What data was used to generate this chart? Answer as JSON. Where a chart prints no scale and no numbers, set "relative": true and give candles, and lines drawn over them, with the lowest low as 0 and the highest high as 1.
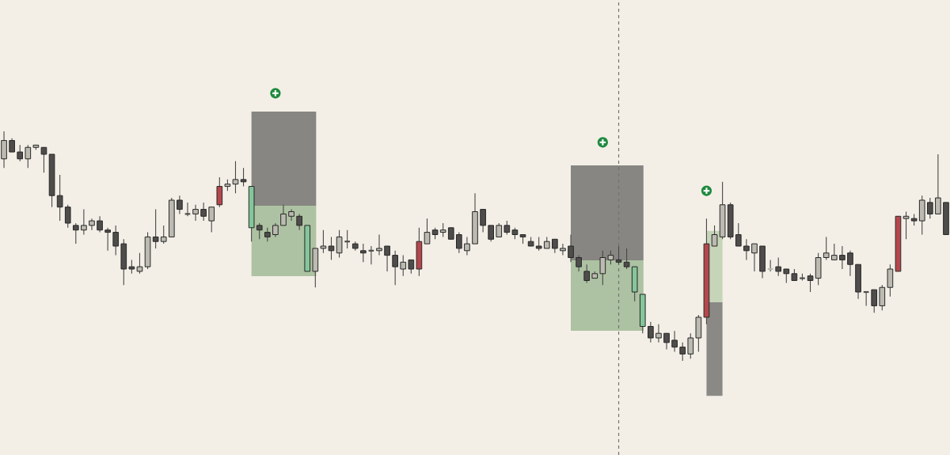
{
  "chart_data": {
    "type": "candlestick",
    "relative": true,
    "categories": [
      null,
      null,
      null,
      null,
      null,
      null,
      null,
      null,
      null,
      null,
      null,
      null,
      null,
      null,
      null,
      null,
      null,
      null,
      null,
      null,
      null,
      null,
      null,
      null,
      null,
      null,
      null,
      null,
      null,
      null,
      null,
      null,
      null,
      null,
      null,
      null,
      null,
      null,
      null,
      null,
      null,
      null,
      null,
      null,
      null,
      null,
      null,
      null,
      null,
      null,
      null,
      null,
      null,
      null,
      null,
      null,
      null,
      null,
      null,
      null,
      null,
      null,
      null,
      null,
      null,
      null,
      null,
      null,
      null,
      null,
      null,
      null,
      null,
      null,
      null,
      null,
      null,
      null,
      null,
      null,
      null,
      null,
      null,
      null,
      null,
      null,
      null,
      null,
      null,
      null,
      null,
      null,
      null,
      null,
      null,
      null,
      null,
      null,
      null,
      null,
      null,
      null,
      null,
      null,
      null,
      null,
      null,
      null,
      null,
      null,
      null,
      null,
      null,
      null,
      null,
      null,
      null,
      null,
      null
    ],
    "ohlc": [
      [
        0.88,
        1.0,
        0.84,
        0.96
      ],
      [
        0.96,
        0.97,
        0.91,
        0.91
      ],
      [
        0.91,
        0.94,
        0.87,
        0.88
      ],
      [
        0.88,
        0.94,
        0.84,
        0.93
      ],
      [
        0.93,
        0.94,
        0.92,
        0.94
      ],
      [
        0.93,
        0.93,
        0.82,
        0.9
      ],
      [
        0.9,
        0.9,
        0.67,
        0.72
      ],
      [
        0.72,
        0.81,
        0.61,
        0.67
      ],
      [
        0.67,
        0.68,
        0.58,
        0.6
      ],
      [
        0.59,
        0.6,
        0.51,
        0.57
      ],
      [
        0.57,
        0.66,
        0.55,
        0.59
      ],
      [
        0.59,
        0.62,
        0.57,
        0.61
      ],
      [
        0.61,
        0.63,
        0.56,
        0.57
      ],
      [
        0.57,
        0.58,
        0.48,
        0.56
      ],
      [
        0.56,
        0.59,
        0.46,
        0.5
      ],
      [
        0.51,
        0.53,
        0.33,
        0.4
      ],
      [
        0.41,
        0.44,
        0.38,
        0.4
      ],
      [
        0.39,
        0.47,
        0.38,
        0.41
      ],
      [
        0.41,
        0.56,
        0.4,
        0.54
      ],
      [
        0.54,
        0.66,
        0.49,
        0.52
      ],
      [
        0.52,
        0.59,
        0.51,
        0.54
      ],
      [
        0.54,
        0.71,
        0.54,
        0.7
      ],
      [
        0.7,
        0.72,
        0.64,
        0.66
      ],
      [
        0.64,
        0.69,
        0.63,
        0.64
      ],
      [
        0.64,
        0.68,
        0.61,
        0.66
      ],
      [
        0.66,
        0.69,
        0.61,
        0.63
      ],
      [
        0.61,
        0.67,
        0.56,
        0.67
      ],
      [
        0.68,
        0.8,
        0.67,
        0.76
      ],
      [
        0.76,
        0.79,
        0.74,
        0.77
      ],
      [
        0.77,
        0.87,
        0.73,
        0.79
      ],
      [
        0.79,
        0.84,
        0.76,
        0.78
      ],
      [
        0.76,
        0.76,
        0.52,
        0.58
      ],
      [
        0.59,
        0.6,
        0.53,
        0.57
      ],
      [
        0.56,
        0.58,
        0.52,
        0.54
      ],
      [
        0.55,
        0.6,
        0.54,
        0.59
      ],
      [
        0.59,
        0.68,
        0.59,
        0.64
      ],
      [
        0.63,
        0.66,
        0.61,
        0.65
      ],
      [
        0.63,
        0.64,
        0.57,
        0.59
      ],
      [
        0.59,
        0.59,
        0.39,
        0.39
      ],
      [
        0.39,
        0.49,
        0.32,
        0.49
      ],
      [
        0.49,
        0.57,
        0.47,
        0.5
      ],
      [
        0.5,
        0.54,
        0.44,
        0.48
      ],
      [
        0.47,
        0.57,
        0.45,
        0.54
      ],
      [
        0.52,
        0.57,
        0.49,
        0.52
      ],
      [
        0.51,
        0.52,
        0.48,
        0.49
      ],
      [
        0.48,
        0.51,
        0.43,
        0.47
      ],
      [
        0.48,
        0.5,
        0.42,
        0.48
      ],
      [
        0.48,
        0.55,
        0.46,
        0.49
      ],
      [
        0.5,
        0.5,
        0.39,
        0.46
      ],
      [
        0.46,
        0.48,
        0.33,
        0.41
      ],
      [
        0.4,
        0.46,
        0.37,
        0.43
      ],
      [
        0.44,
        0.44,
        0.38,
        0.4
      ],
      [
        0.4,
        0.58,
        0.37,
        0.52
      ],
      [
        0.51,
        0.62,
        0.51,
        0.56
      ],
      [
        0.57,
        0.58,
        0.53,
        0.55
      ],
      [
        0.56,
        0.6,
        0.54,
        0.57
      ],
      [
        0.58,
        0.58,
        0.53,
        0.53
      ],
      [
        0.55,
        0.56,
        0.47,
        0.49
      ],
      [
        0.48,
        0.54,
        0.46,
        0.51
      ],
      [
        0.51,
        0.73,
        0.51,
        0.65
      ],
      [
        0.66,
        0.66,
        0.56,
        0.59
      ],
      [
        0.59,
        0.59,
        0.52,
        0.53
      ],
      [
        0.54,
        0.6,
        0.54,
        0.59
      ],
      [
        0.59,
        0.61,
        0.55,
        0.56
      ],
      [
        0.57,
        0.58,
        0.53,
        0.55
      ],
      [
        0.55,
        0.55,
        0.51,
        0.54
      ],
      [
        0.52,
        0.54,
        0.5,
        0.5
      ],
      [
        0.5,
        0.54,
        0.48,
        0.49
      ],
      [
        0.49,
        0.54,
        0.49,
        0.52
      ],
      [
        0.53,
        0.53,
        0.47,
        0.49
      ],
      [
        0.48,
        0.51,
        0.46,
        0.49
      ],
      [
        0.5,
        0.55,
        0.43,
        0.45
      ],
      [
        0.45,
        0.46,
        0.39,
        0.41
      ],
      [
        0.39,
        0.42,
        0.34,
        0.35
      ],
      [
        0.36,
        0.39,
        0.36,
        0.38
      ],
      [
        0.38,
        0.48,
        0.33,
        0.45
      ],
      [
        0.44,
        0.48,
        0.42,
        0.46
      ],
      [
        0.44,
        0.5,
        0.42,
        0.43
      ],
      [
        0.43,
        0.49,
        0.4,
        0.41
      ],
      [
        0.41,
        0.41,
        0.26,
        0.3
      ],
      [
        0.29,
        0.29,
        0.12,
        0.15
      ],
      [
        0.15,
        0.17,
        0.08,
        0.1
      ],
      [
        0.1,
        0.16,
        0.08,
        0.12
      ],
      [
        0.12,
        0.12,
        0.05,
        0.08
      ],
      [
        0.09,
        0.13,
        0.04,
        0.06
      ],
      [
        0.06,
        0.08,
        0.0,
        0.03
      ],
      [
        0.03,
        0.12,
        0.01,
        0.1
      ],
      [
        0.1,
        0.2,
        0.04,
        0.19
      ],
      [
        0.19,
        0.62,
        0.16,
        0.51
      ],
      [
        0.5,
        0.59,
        0.5,
        0.55
      ],
      [
        0.54,
        0.78,
        0.53,
        0.68
      ],
      [
        0.68,
        0.69,
        0.53,
        0.54
      ],
      [
        0.55,
        0.6,
        0.5,
        0.5
      ],
      [
        0.5,
        0.53,
        0.44,
        0.48
      ],
      [
        0.47,
        0.51,
        0.39,
        0.51
      ],
      [
        0.5,
        0.5,
        0.36,
        0.39
      ],
      [
        0.4,
        0.44,
        0.39,
        0.4
      ],
      [
        0.41,
        0.45,
        0.37,
        0.39
      ],
      [
        0.4,
        0.4,
        0.34,
        0.38
      ],
      [
        0.38,
        0.4,
        0.35,
        0.35
      ],
      [
        0.36,
        0.38,
        0.35,
        0.36
      ],
      [
        0.37,
        0.38,
        0.3,
        0.35
      ],
      [
        0.36,
        0.47,
        0.33,
        0.45
      ],
      [
        0.45,
        0.54,
        0.44,
        0.47
      ],
      [
        0.44,
        0.51,
        0.44,
        0.46
      ],
      [
        0.46,
        0.5,
        0.4,
        0.44
      ],
      [
        0.47,
        0.48,
        0.37,
        0.42
      ],
      [
        0.42,
        0.42,
        0.27,
        0.3
      ],
      [
        0.3,
        0.3,
        0.24,
        0.3
      ],
      [
        0.31,
        0.31,
        0.21,
        0.24
      ],
      [
        0.24,
        0.33,
        0.22,
        0.32
      ],
      [
        0.32,
        0.42,
        0.28,
        0.4
      ],
      [
        0.39,
        0.63,
        0.39,
        0.63
      ],
      [
        0.62,
        0.65,
        0.53,
        0.63
      ],
      [
        0.62,
        0.64,
        0.59,
        0.61
      ],
      [
        0.61,
        0.72,
        0.55,
        0.7
      ],
      [
        0.69,
        0.71,
        0.62,
        0.64
      ],
      [
        0.64,
        0.9,
        0.64,
        0.71
      ],
      [
        0.69,
        0.69,
        0.55,
        0.55
      ]
    ],
    "colors": [
      "#bcbab1",
      "#4f4d4b",
      "#4f4d4b",
      "#bcbab1",
      "#bcbab1",
      "#4f4d4b",
      "#4f4d4b",
      "#4f4d4b",
      "#4f4d4b",
      "#4f4d4b",
      "#bcbab1",
      "#bcbab1",
      "#4f4d4b",
      "#4f4d4b",
      "#4f4d4b",
      "#4f4d4b",
      "#4f4d4b",
      "#bcbab1",
      "#bcbab1",
      "#4f4d4b",
      "#bcbab1",
      "#bcbab1",
      "#4f4d4b",
      "#4f4d4b",
      "#bcbab1",
      "#4f4d4b",
      "#bcbab1",
      "#b5474c",
      "#bcbab1",
      "#bcbab1",
      "#4f4d4b",
      "#84c69a",
      "#4f4d4b",
      "#4f4d4b",
      "#bcbab1",
      "#bcbab1",
      "#bcbab1",
      "#4f4d4b",
      "#84c69a",
      "#bcbab1",
      "#bcbab1",
      "#4f4d4b",
      "#bcbab1",
      "#4f4d4b",
      "#4f4d4b",
      "#4f4d4b",
      "#4f4d4b",
      "#bcbab1",
      "#4f4d4b",
      "#4f4d4b",
      "#bcbab1",
      "#4f4d4b",
      "#b5474c",
      "#bcbab1",
      "#4f4d4b",
      "#bcbab1",
      "#4f4d4b",
      "#4f4d4b",
      "#bcbab1",
      "#bcbab1",
      "#4f4d4b",
      "#4f4d4b",
      "#bcbab1",
      "#4f4d4b",
      "#4f4d4b",
      "#4f4d4b",
      "#4f4d4b",
      "#4f4d4b",
      "#bcbab1",
      "#4f4d4b",
      "#bcbab1",
      "#4f4d4b",
      "#4f4d4b",
      "#4f4d4b",
      "#bcbab1",
      "#bcbab1",
      "#bcbab1",
      "#4f4d4b",
      "#4f4d4b",
      "#84c69a",
      "#84c69a",
      "#4f4d4b",
      "#bcbab1",
      "#4f4d4b",
      "#4f4d4b",
      "#4f4d4b",
      "#bcbab1",
      "#bcbab1",
      "#b5474c",
      "#bcbab1",
      "#bcbab1",
      "#4f4d4b",
      "#4f4d4b",
      "#4f4d4b",
      "#bcbab1",
      "#4f4d4b",
      "#bcbab1",
      "#4f4d4b",
      "#4f4d4b",
      "#4f4d4b",
      "#4f4d4b",
      "#4f4d4b",
      "#bcbab1",
      "#bcbab1",
      "#bcbab1",
      "#4f4d4b",
      "#4f4d4b",
      "#4f4d4b",
      "#4f4d4b",
      "#4f4d4b",
      "#bcbab1",
      "#bcbab1",
      "#b5474c",
      "#bcbab1",
      "#4f4d4b",
      "#bcbab1",
      "#4f4d4b",
      "#bcbab1",
      "#4f4d4b"
    ]
  }
}
